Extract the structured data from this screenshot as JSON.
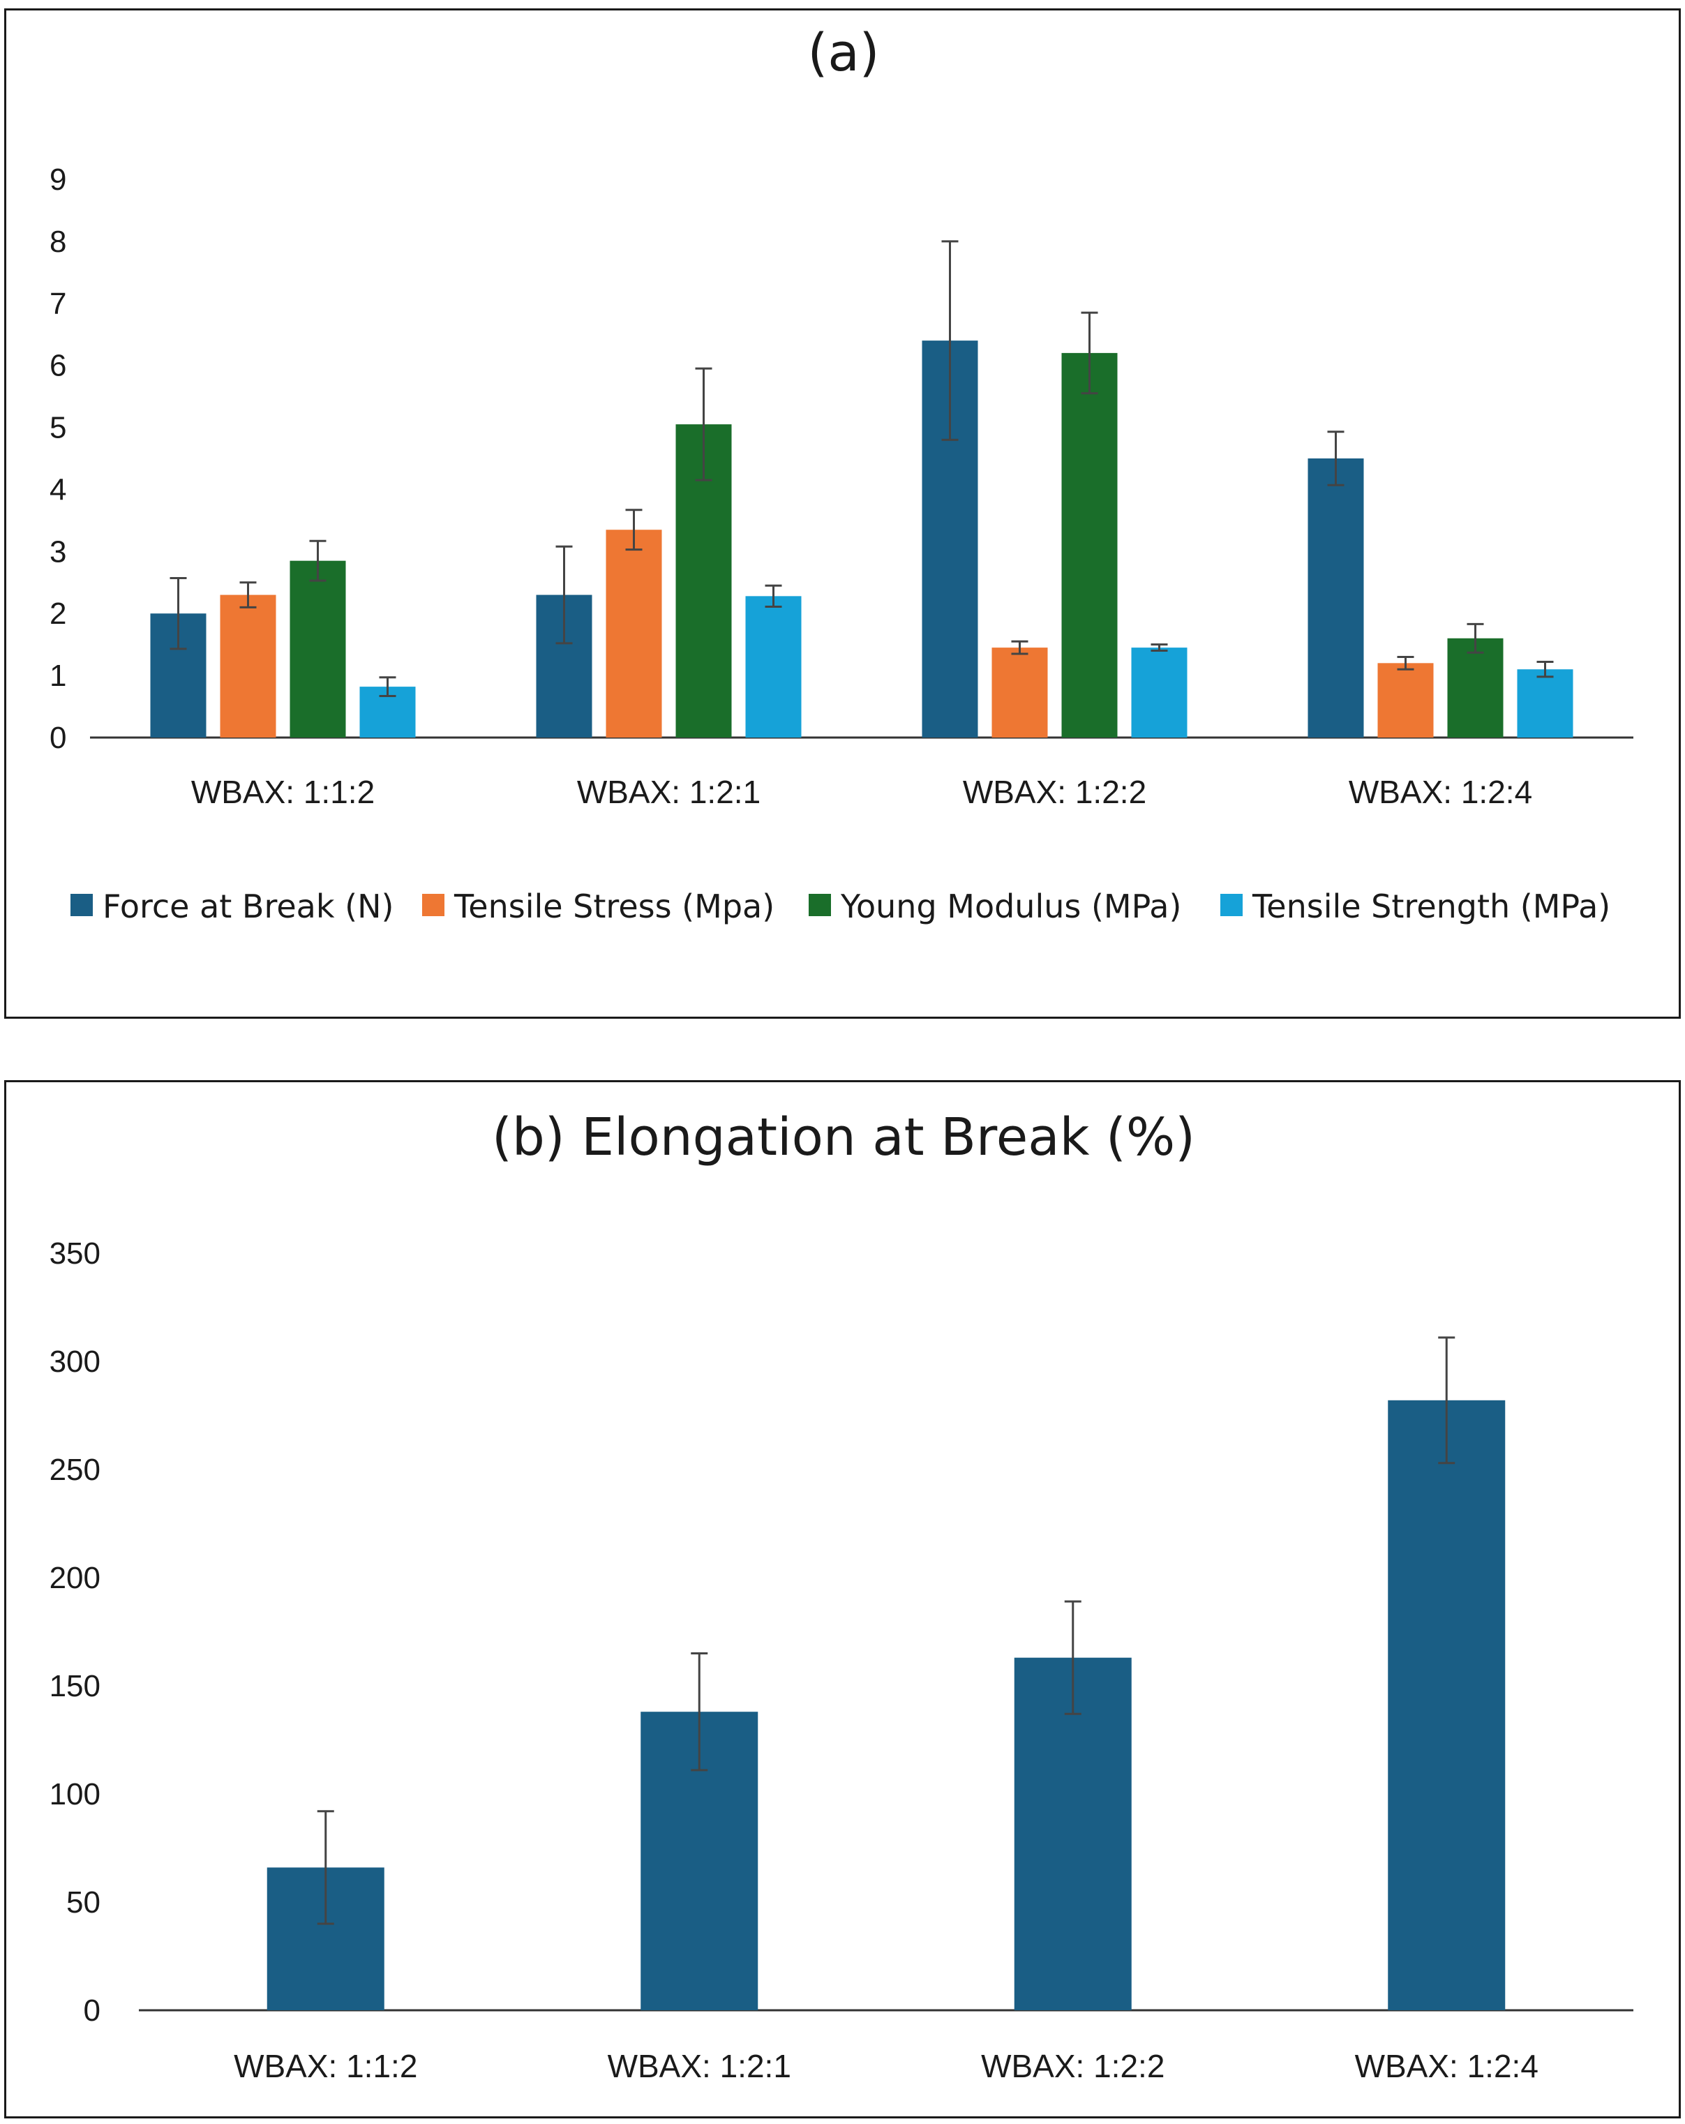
{
  "chart_data": [
    {
      "type": "bar",
      "title": "(a)",
      "xlabel": "",
      "ylabel": "",
      "ylim": [
        0,
        9
      ],
      "yticks": [
        0,
        1,
        2,
        3,
        4,
        5,
        6,
        7,
        8,
        9
      ],
      "categories": [
        "WBAX: 1:1:2",
        "WBAX: 1:2:1",
        "WBAX: 1:2:2",
        "WBAX: 1:2:4"
      ],
      "legend_position": "bottom",
      "series": [
        {
          "name": "Force at Break (N)",
          "color": "#1a5e85",
          "values": [
            2.0,
            2.3,
            6.4,
            4.5
          ],
          "errors": [
            0.57,
            0.78,
            1.6,
            0.43
          ]
        },
        {
          "name": "Tensile Stress (Mpa)",
          "color": "#ee7733",
          "values": [
            2.3,
            3.35,
            1.45,
            1.2
          ],
          "errors": [
            0.2,
            0.32,
            0.1,
            0.1
          ]
        },
        {
          "name": "Young Modulus (MPa)",
          "color": "#1a6e2a",
          "values": [
            2.85,
            5.05,
            6.2,
            1.6
          ],
          "errors": [
            0.32,
            0.9,
            0.65,
            0.23
          ]
        },
        {
          "name": "Tensile Strength (MPa)",
          "color": "#16a2d8",
          "values": [
            0.82,
            2.28,
            1.45,
            1.1
          ],
          "errors": [
            0.15,
            0.17,
            0.05,
            0.12
          ]
        }
      ]
    },
    {
      "type": "bar",
      "title": "(b) Elongation at Break (%)",
      "xlabel": "",
      "ylabel": "",
      "ylim": [
        0,
        350
      ],
      "yticks": [
        0,
        50,
        100,
        150,
        200,
        250,
        300,
        350
      ],
      "categories": [
        "WBAX: 1:1:2",
        "WBAX: 1:2:1",
        "WBAX: 1:2:2",
        "WBAX: 1:2:4"
      ],
      "series": [
        {
          "name": "Elongation at Break (%)",
          "color": "#1a5e85",
          "values": [
            66,
            138,
            163,
            282
          ],
          "errors": [
            26,
            27,
            26,
            29
          ]
        }
      ]
    }
  ]
}
